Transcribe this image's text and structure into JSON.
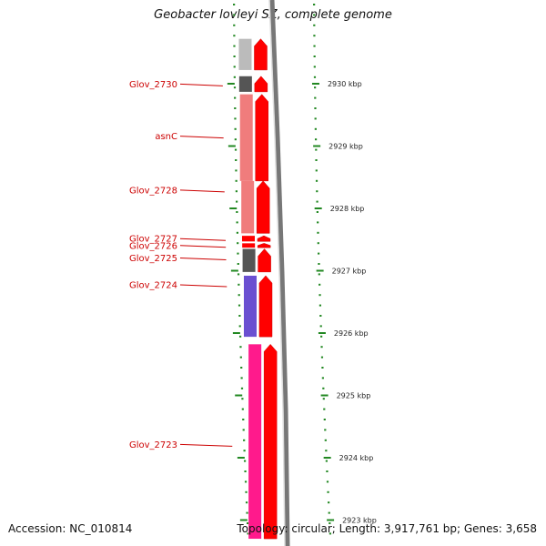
{
  "title": "Geobacter lovleyi SZ, complete genome",
  "accession": "Accession: NC_010814",
  "topology": "Topology: circular; Length: 3,917,761 bp; Genes: 3,658",
  "colors": {
    "gene_label": "#cc0000",
    "forward_track": "#ff0000",
    "tick_green": "#228822",
    "backbone": "#777777"
  },
  "genes": [
    {
      "id": "glov_2729",
      "label": "",
      "color": "#bbbbbb",
      "start_kbp": 2930.72,
      "end_kbp": 2930.22
    },
    {
      "id": "glov_2730",
      "label": "Glov_2730",
      "color": "#555555",
      "start_kbp": 2930.12,
      "end_kbp": 2929.87
    },
    {
      "id": "asnC",
      "label": "asnC",
      "color": "#f07c7c",
      "start_kbp": 2929.83,
      "end_kbp": 2928.44
    },
    {
      "id": "glov_2728",
      "label": "Glov_2728",
      "color": "#f07c7c",
      "start_kbp": 2928.44,
      "end_kbp": 2927.6
    },
    {
      "id": "glov_2727",
      "label": "Glov_2727",
      "color": "#ff0000",
      "start_kbp": 2927.56,
      "end_kbp": 2927.47
    },
    {
      "id": "glov_2726",
      "label": "Glov_2726",
      "color": "#ff0000",
      "start_kbp": 2927.44,
      "end_kbp": 2927.37
    },
    {
      "id": "glov_2725",
      "label": "Glov_2725",
      "color": "#555555",
      "start_kbp": 2927.35,
      "end_kbp": 2926.98
    },
    {
      "id": "glov_2724",
      "label": "Glov_2724",
      "color": "#6a4fd1",
      "start_kbp": 2926.92,
      "end_kbp": 2925.94
    },
    {
      "id": "glov_2723",
      "label": "Glov_2723",
      "color": "#ff1a8c",
      "start_kbp": 2925.82,
      "end_kbp": 2922.7
    }
  ],
  "kbp_ticks": [
    {
      "value": 2930,
      "label": "2930 kbp"
    },
    {
      "value": 2929,
      "label": "2929 kbp"
    },
    {
      "value": 2928,
      "label": "2928 kbp"
    },
    {
      "value": 2927,
      "label": "2927 kbp"
    },
    {
      "value": 2926,
      "label": "2926 kbp"
    },
    {
      "value": 2925,
      "label": "2925 kbp"
    },
    {
      "value": 2924,
      "label": "2924 kbp"
    },
    {
      "value": 2923,
      "label": "2923 kbp"
    }
  ]
}
